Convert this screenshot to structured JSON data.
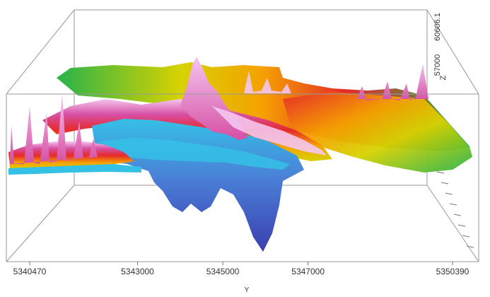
{
  "chart_data": {
    "type": "surface3d",
    "title": "",
    "xlabel": "Y",
    "zlabel": "Z",
    "x_ticks": [
      "5340470",
      "5343000",
      "5345000",
      "5347000",
      "5350390"
    ],
    "x_tick_values": [
      5340470,
      5343000,
      5345000,
      5347000,
      5350390
    ],
    "xlim": [
      5340470,
      5350390
    ],
    "z_ticks": [
      "60606.1",
      "57000"
    ],
    "z_tick_values": [
      60606.1,
      57000
    ],
    "grid": false,
    "legend": "none",
    "colormap": [
      "#3b3fb0",
      "#4a7fd6",
      "#35c0e6",
      "#e8f6f9",
      "#f4c6ef",
      "#d64fa4",
      "#e62a2a",
      "#f5a000",
      "#d7d200",
      "#27b34a"
    ],
    "box_color": "#999999"
  }
}
